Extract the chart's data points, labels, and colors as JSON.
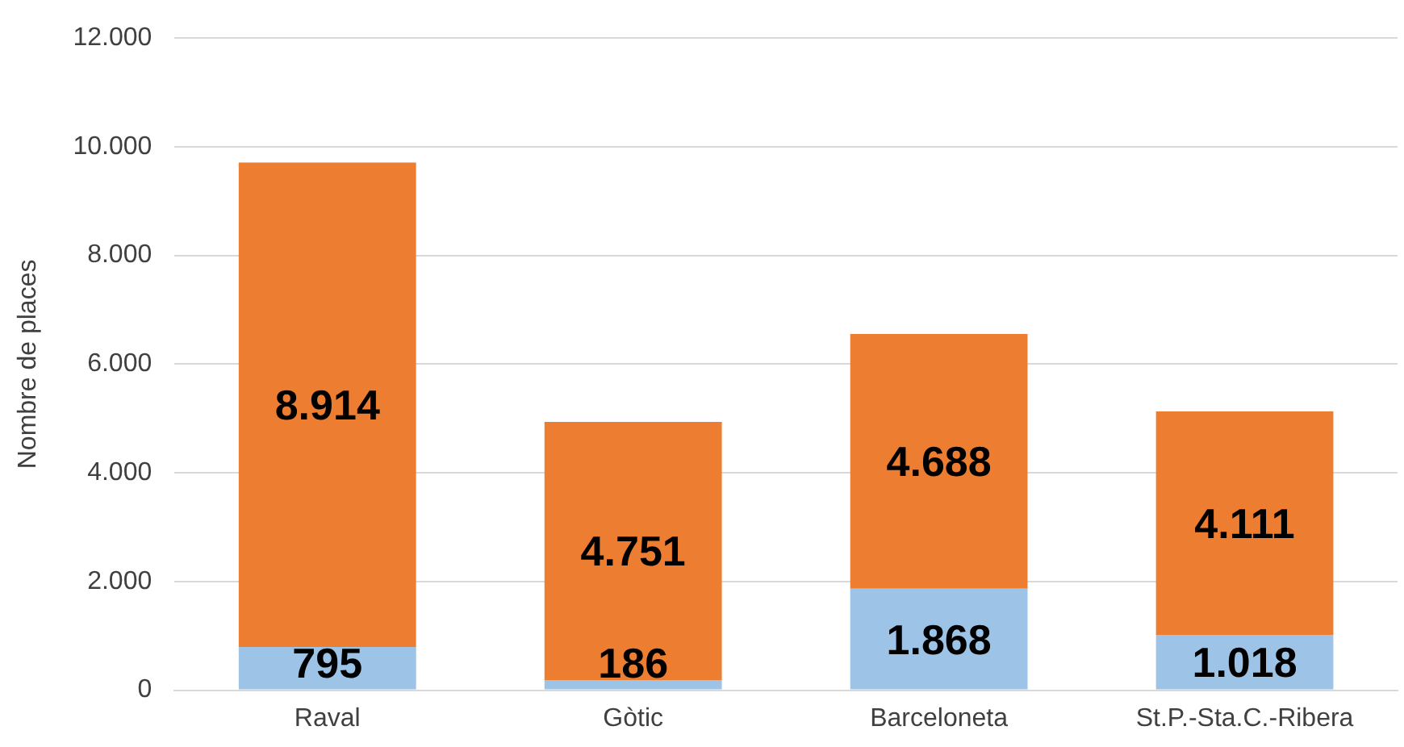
{
  "chart_data": {
    "type": "bar",
    "stacked": true,
    "ylabel": "Nombre de places",
    "categories": [
      "Raval",
      "Gòtic",
      "Barceloneta",
      "St.P.-Sta.C.-Ribera"
    ],
    "series": [
      {
        "color": "#9dc3e6",
        "values": [
          795,
          186,
          1868,
          1018
        ],
        "value_labels": [
          "795",
          "186",
          "1.868",
          "1.018"
        ]
      },
      {
        "color": "#ed7d31",
        "values": [
          8914,
          4751,
          4688,
          4111
        ],
        "value_labels": [
          "8.914",
          "4.751",
          "4.688",
          "4.111"
        ]
      }
    ],
    "ylim": [
      0,
      12000
    ],
    "yticks": [
      {
        "value": 0,
        "label": "0"
      },
      {
        "value": 2000,
        "label": "2.000"
      },
      {
        "value": 4000,
        "label": "4.000"
      },
      {
        "value": 6000,
        "label": "6.000"
      },
      {
        "value": 8000,
        "label": "8.000"
      },
      {
        "value": 10000,
        "label": "10.000"
      },
      {
        "value": 12000,
        "label": "12.000"
      }
    ],
    "grid": "y",
    "legend": false
  }
}
